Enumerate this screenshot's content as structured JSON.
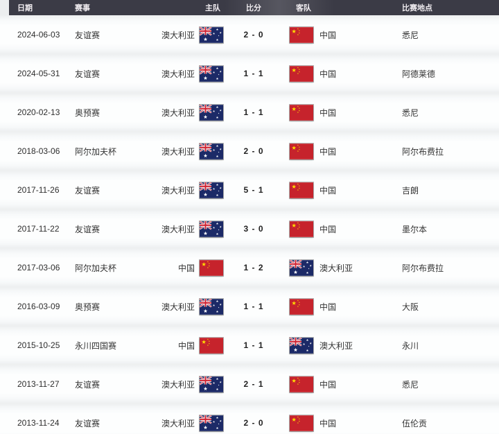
{
  "header": {
    "columns": [
      "日期",
      "赛事",
      "主队",
      "比分",
      "客队",
      "比赛地点"
    ]
  },
  "teams": {
    "australia": {
      "name": "澳大利亚",
      "flag_icon": "australia-flag-icon",
      "flag_colors": {
        "field": "#1c2a67",
        "jack_red": "#cf2433",
        "star": "#ffffff"
      }
    },
    "china": {
      "name": "中国",
      "flag_icon": "china-flag-icon",
      "flag_colors": {
        "field": "#c6232c",
        "star": "#ffde00"
      }
    }
  },
  "matches": [
    {
      "date": "2024-06-03",
      "competition": "友谊赛",
      "home": "australia",
      "score": "2 - 0",
      "away": "china",
      "venue": "悉尼"
    },
    {
      "date": "2024-05-31",
      "competition": "友谊赛",
      "home": "australia",
      "score": "1 - 1",
      "away": "china",
      "venue": "阿德莱德"
    },
    {
      "date": "2020-02-13",
      "competition": "奥预赛",
      "home": "australia",
      "score": "1 - 1",
      "away": "china",
      "venue": "悉尼"
    },
    {
      "date": "2018-03-06",
      "competition": "阿尔加夫杯",
      "home": "australia",
      "score": "2 - 0",
      "away": "china",
      "venue": "阿尔布费拉"
    },
    {
      "date": "2017-11-26",
      "competition": "友谊赛",
      "home": "australia",
      "score": "5 - 1",
      "away": "china",
      "venue": "吉朗"
    },
    {
      "date": "2017-11-22",
      "competition": "友谊赛",
      "home": "australia",
      "score": "3 - 0",
      "away": "china",
      "venue": "墨尔本"
    },
    {
      "date": "2017-03-06",
      "competition": "阿尔加夫杯",
      "home": "china",
      "score": "1 - 2",
      "away": "australia",
      "venue": "阿尔布费拉"
    },
    {
      "date": "2016-03-09",
      "competition": "奥预赛",
      "home": "australia",
      "score": "1 - 1",
      "away": "china",
      "venue": "大阪"
    },
    {
      "date": "2015-10-25",
      "competition": "永川四国赛",
      "home": "china",
      "score": "1 - 1",
      "away": "australia",
      "venue": "永川"
    },
    {
      "date": "2013-11-27",
      "competition": "友谊赛",
      "home": "australia",
      "score": "2 - 1",
      "away": "china",
      "venue": "悉尼"
    },
    {
      "date": "2013-11-24",
      "competition": "友谊赛",
      "home": "australia",
      "score": "2 - 0",
      "away": "china",
      "venue": "伍伦贡"
    }
  ],
  "colors": {
    "header_bg": "#3b3b46",
    "header_text": "#f1edf1",
    "row_bg": "#fdfefe",
    "stripe": "#edeff0",
    "row_text": "#333333"
  }
}
